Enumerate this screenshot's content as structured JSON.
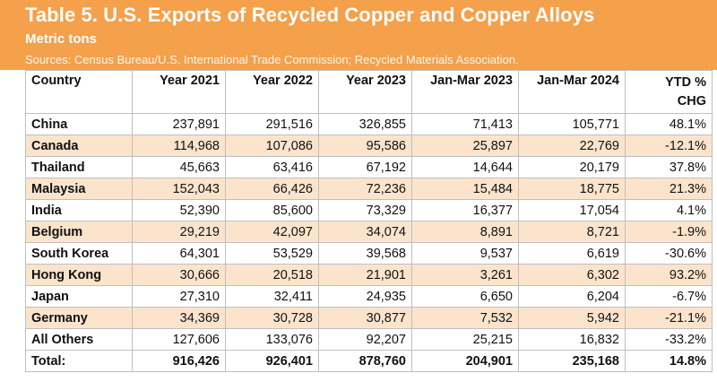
{
  "header": {
    "title": "Table 5. U.S. Exports of Recycled Copper and Copper Alloys",
    "subtitle": "Metric tons",
    "sources": "Sources: Census Bureau/U.S. International Trade Commission; Recycled Materials Association."
  },
  "columns": [
    "Country",
    "Year 2021",
    "Year 2022",
    "Year 2023",
    "Jan-Mar 2023",
    "Jan-Mar 2024",
    "YTD %",
    "CHG"
  ],
  "rows": [
    {
      "country": "China",
      "y2021": "237,891",
      "y2022": "291,516",
      "y2023": "326,855",
      "q2023": "71,413",
      "q2024": "105,771",
      "chg": "48.1%"
    },
    {
      "country": "Canada",
      "y2021": "114,968",
      "y2022": "107,086",
      "y2023": "95,586",
      "q2023": "25,897",
      "q2024": "22,769",
      "chg": "-12.1%"
    },
    {
      "country": "Thailand",
      "y2021": "45,663",
      "y2022": "63,416",
      "y2023": "67,192",
      "q2023": "14,644",
      "q2024": "20,179",
      "chg": "37.8%"
    },
    {
      "country": "Malaysia",
      "y2021": "152,043",
      "y2022": "66,426",
      "y2023": "72,236",
      "q2023": "15,484",
      "q2024": "18,775",
      "chg": "21.3%"
    },
    {
      "country": "India",
      "y2021": "52,390",
      "y2022": "85,600",
      "y2023": "73,329",
      "q2023": "16,377",
      "q2024": "17,054",
      "chg": "4.1%"
    },
    {
      "country": "Belgium",
      "y2021": "29,219",
      "y2022": "42,097",
      "y2023": "34,074",
      "q2023": "8,891",
      "q2024": "8,721",
      "chg": "-1.9%"
    },
    {
      "country": "South Korea",
      "y2021": "64,301",
      "y2022": "53,529",
      "y2023": "39,568",
      "q2023": "9,537",
      "q2024": "6,619",
      "chg": "-30.6%"
    },
    {
      "country": "Hong Kong",
      "y2021": "30,666",
      "y2022": "20,518",
      "y2023": "21,901",
      "q2023": "3,261",
      "q2024": "6,302",
      "chg": "93.2%"
    },
    {
      "country": "Japan",
      "y2021": "27,310",
      "y2022": "32,411",
      "y2023": "24,935",
      "q2023": "6,650",
      "q2024": "6,204",
      "chg": "-6.7%"
    },
    {
      "country": "Germany",
      "y2021": "34,369",
      "y2022": "30,728",
      "y2023": "30,877",
      "q2023": "7,532",
      "q2024": "5,942",
      "chg": "-21.1%"
    },
    {
      "country": "All Others",
      "y2021": "127,606",
      "y2022": "133,076",
      "y2023": "92,207",
      "q2023": "25,215",
      "q2024": "16,832",
      "chg": "-33.2%"
    },
    {
      "country": "Total:",
      "y2021": "916,426",
      "y2022": "926,401",
      "y2023": "878,760",
      "q2023": "204,901",
      "q2024": "235,168",
      "chg": "14.8%"
    }
  ],
  "colors": {
    "banner": "#f5a04a",
    "band": "#fce4cc",
    "border": "#bfbfbf"
  }
}
